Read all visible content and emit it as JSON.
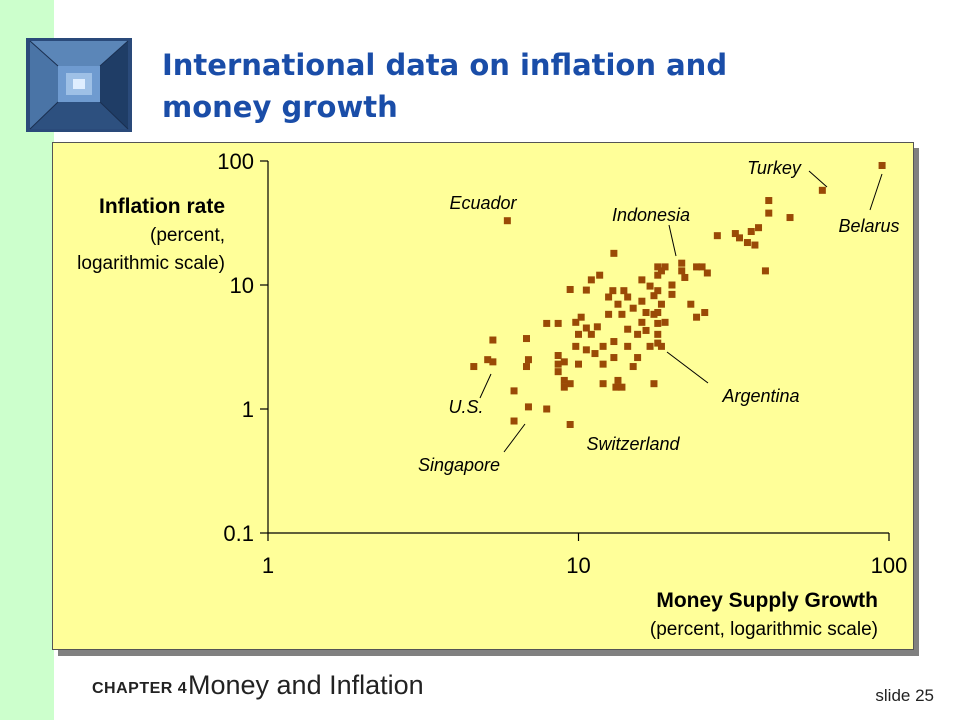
{
  "slide": {
    "title_line1": "International data on inflation and",
    "title_line2": "money growth",
    "chapter_label": "CHAPTER 4",
    "chapter_topic": "Money and Inflation",
    "slide_number": "slide 25"
  },
  "colors": {
    "left_band": "#ccffcc",
    "title": "#1a4da8",
    "chart_background": "#ffff99",
    "marker": "#9a4a06"
  },
  "icons": {
    "logo": "well-shaft-logo-icon"
  },
  "chart_data": {
    "type": "scatter",
    "xscale": "log",
    "yscale": "log",
    "xlim": [
      1,
      100
    ],
    "ylim": [
      0.1,
      100
    ],
    "x_ticks": [
      "1",
      "10",
      "100"
    ],
    "y_ticks": [
      "100",
      "10",
      "1",
      "0.1"
    ],
    "xlabel": "Money Supply Growth",
    "xlabel_sub": "(percent, logarithmic scale)",
    "ylabel": "Inflation rate",
    "ylabel_sub1": "(percent,",
    "ylabel_sub2": "logarithmic scale)",
    "grid": false,
    "points": [
      [
        4.6,
        2.2
      ],
      [
        5.1,
        2.5
      ],
      [
        5.3,
        3.6
      ],
      [
        5.3,
        2.4
      ],
      [
        5.9,
        33.0
      ],
      [
        6.2,
        1.4
      ],
      [
        6.2,
        0.8
      ],
      [
        6.8,
        3.7
      ],
      [
        6.8,
        2.2
      ],
      [
        6.9,
        2.5
      ],
      [
        6.9,
        1.04
      ],
      [
        7.9,
        4.9
      ],
      [
        7.9,
        1.0
      ],
      [
        8.6,
        4.9
      ],
      [
        8.6,
        2.7
      ],
      [
        8.6,
        2.3
      ],
      [
        8.6,
        2.0
      ],
      [
        9.0,
        2.4
      ],
      [
        9.0,
        1.7
      ],
      [
        9.0,
        1.5
      ],
      [
        9.4,
        9.2
      ],
      [
        9.4,
        1.6
      ],
      [
        9.4,
        0.75
      ],
      [
        9.8,
        5.0
      ],
      [
        9.8,
        3.2
      ],
      [
        10.0,
        4.0
      ],
      [
        10.0,
        2.3
      ],
      [
        10.2,
        5.5
      ],
      [
        10.6,
        9.1
      ],
      [
        10.6,
        4.5
      ],
      [
        10.6,
        3.0
      ],
      [
        11.0,
        11.0
      ],
      [
        11.0,
        4.0
      ],
      [
        11.3,
        2.8
      ],
      [
        11.5,
        4.6
      ],
      [
        11.7,
        12.0
      ],
      [
        12.0,
        3.2
      ],
      [
        12.0,
        1.6
      ],
      [
        12.0,
        2.3
      ],
      [
        12.5,
        8.0
      ],
      [
        12.5,
        5.8
      ],
      [
        12.9,
        9.0
      ],
      [
        13.0,
        18.0
      ],
      [
        13.0,
        3.5
      ],
      [
        13.0,
        2.6
      ],
      [
        13.2,
        1.5
      ],
      [
        13.4,
        7.0
      ],
      [
        13.4,
        1.7
      ],
      [
        13.8,
        5.8
      ],
      [
        13.8,
        1.5
      ],
      [
        14.0,
        9.0
      ],
      [
        14.4,
        8.0
      ],
      [
        14.4,
        4.4
      ],
      [
        14.4,
        3.2
      ],
      [
        15.0,
        2.2
      ],
      [
        15.0,
        6.5
      ],
      [
        15.5,
        4.0
      ],
      [
        15.5,
        2.6
      ],
      [
        16.0,
        11.0
      ],
      [
        16.0,
        7.4
      ],
      [
        16.0,
        5.0
      ],
      [
        16.5,
        6.0
      ],
      [
        16.5,
        4.3
      ],
      [
        17.0,
        9.8
      ],
      [
        17.0,
        3.2
      ],
      [
        17.5,
        8.2
      ],
      [
        17.5,
        1.6
      ],
      [
        17.5,
        5.8
      ],
      [
        18.0,
        12.0
      ],
      [
        18.0,
        9.0
      ],
      [
        18.0,
        6.0
      ],
      [
        18.0,
        4.9
      ],
      [
        18.0,
        4.0
      ],
      [
        18.0,
        3.4
      ],
      [
        18.0,
        14.0
      ],
      [
        18.5,
        13.0
      ],
      [
        18.5,
        7.0
      ],
      [
        18.5,
        3.2
      ],
      [
        19.0,
        14.0
      ],
      [
        19.0,
        5.0
      ],
      [
        20.0,
        8.4
      ],
      [
        20.0,
        10.0
      ],
      [
        21.5,
        15.0
      ],
      [
        21.5,
        13.0
      ],
      [
        22.0,
        11.5
      ],
      [
        23.0,
        7.0
      ],
      [
        24.0,
        14.0
      ],
      [
        24.0,
        5.5
      ],
      [
        25.0,
        14.0
      ],
      [
        25.5,
        6.0
      ],
      [
        26.0,
        12.5
      ],
      [
        28.0,
        25.0
      ],
      [
        32.0,
        26.0
      ],
      [
        33.0,
        24.0
      ],
      [
        35.0,
        22.0
      ],
      [
        36.0,
        27.0
      ],
      [
        37.0,
        21.0
      ],
      [
        38.0,
        29.0
      ],
      [
        40.0,
        13.0
      ],
      [
        41.0,
        38.0
      ],
      [
        41.0,
        48.0
      ],
      [
        48.0,
        35.0
      ],
      [
        61.0,
        58.0
      ],
      [
        95.0,
        92.0
      ]
    ],
    "annotations": [
      {
        "label": "Ecuador"
      },
      {
        "label": "Turkey"
      },
      {
        "label": "Indonesia"
      },
      {
        "label": "Belarus"
      },
      {
        "label": "Argentina"
      },
      {
        "label": "U.S."
      },
      {
        "label": "Switzerland"
      },
      {
        "label": "Singapore"
      }
    ]
  }
}
